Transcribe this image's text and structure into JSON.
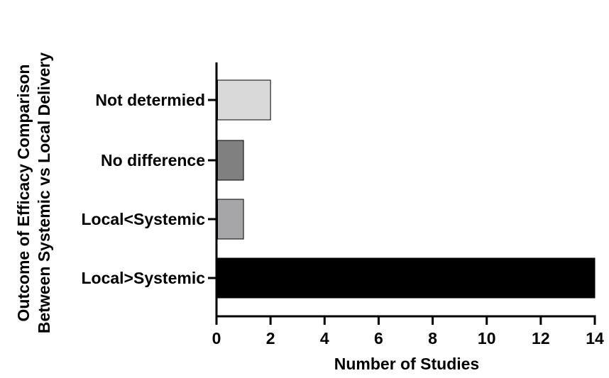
{
  "chart_data": {
    "type": "bar",
    "orientation": "horizontal",
    "categories": [
      "Not determied",
      "No difference",
      "Local<Systemic",
      "Local>Systemic"
    ],
    "values": [
      2,
      1,
      1,
      14
    ],
    "bar_colors": [
      "#d9d9d9",
      "#808080",
      "#a6a6a8",
      "#000000"
    ],
    "xlabel": "Number of Studies",
    "ylabel_lines": [
      "Outcome of Efficacy Comparison",
      "Between Systemic vs Local Delivery"
    ],
    "xlim": [
      0,
      14
    ],
    "x_ticks": [
      0,
      2,
      4,
      6,
      8,
      10,
      12,
      14
    ],
    "grid": false
  }
}
